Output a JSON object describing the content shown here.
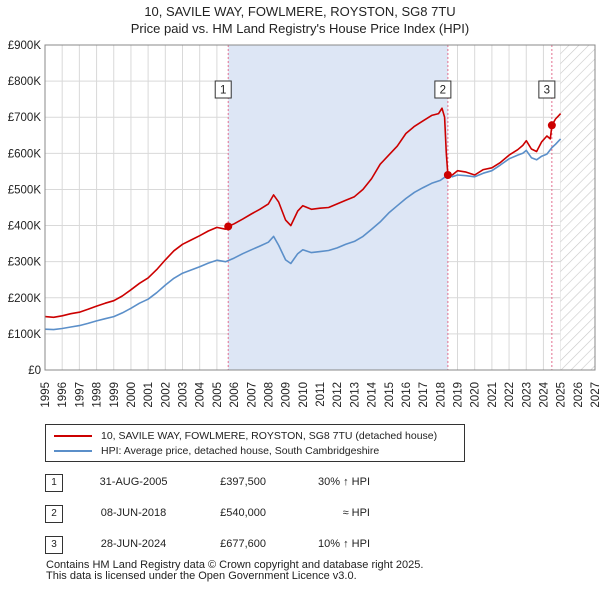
{
  "title": {
    "line1": "10, SAVILE WAY, FOWLMERE, ROYSTON, SG8 7TU",
    "line2": "Price paid vs. HM Land Registry's House Price Index (HPI)"
  },
  "colors": {
    "property": "#cc0000",
    "hpi": "#5b8fc9",
    "shade": "#dde6f5",
    "marker_line": "#e36f8f"
  },
  "chart_data": {
    "type": "line",
    "x_range": [
      1995,
      2027
    ],
    "ylim": [
      0,
      900000
    ],
    "x_ticks": [
      "1995",
      "1996",
      "1997",
      "1998",
      "1999",
      "2000",
      "2001",
      "2002",
      "2003",
      "2004",
      "2005",
      "2006",
      "2007",
      "2008",
      "2009",
      "2010",
      "2011",
      "2012",
      "2013",
      "2014",
      "2015",
      "2016",
      "2017",
      "2018",
      "2019",
      "2020",
      "2021",
      "2022",
      "2023",
      "2024",
      "2025",
      "2026",
      "2027"
    ],
    "y_ticks": [
      {
        "value": 0,
        "label": "£0"
      },
      {
        "value": 100000,
        "label": "£100K"
      },
      {
        "value": 200000,
        "label": "£200K"
      },
      {
        "value": 300000,
        "label": "£300K"
      },
      {
        "value": 400000,
        "label": "£400K"
      },
      {
        "value": 500000,
        "label": "£500K"
      },
      {
        "value": 600000,
        "label": "£600K"
      },
      {
        "value": 700000,
        "label": "£700K"
      },
      {
        "value": 800000,
        "label": "£800K"
      },
      {
        "value": 900000,
        "label": "£900K"
      }
    ],
    "shaded_period": [
      2005.66,
      2018.44
    ],
    "future_hatch_from": 2025.0,
    "series": [
      {
        "name": "10, SAVILE WAY, FOWLMERE, ROYSTON, SG8 7TU (detached house)",
        "key": "property",
        "x": [
          1995.0,
          1995.5,
          1996.0,
          1996.5,
          1997.0,
          1997.5,
          1998.0,
          1998.5,
          1999.0,
          1999.5,
          2000.0,
          2000.5,
          2001.0,
          2001.5,
          2002.0,
          2002.5,
          2003.0,
          2003.5,
          2004.0,
          2004.5,
          2005.0,
          2005.5,
          2005.66,
          2006.0,
          2006.5,
          2007.0,
          2007.5,
          2008.0,
          2008.3,
          2008.6,
          2009.0,
          2009.3,
          2009.7,
          2010.0,
          2010.5,
          2011.0,
          2011.5,
          2012.0,
          2012.5,
          2013.0,
          2013.5,
          2014.0,
          2014.5,
          2015.0,
          2015.5,
          2016.0,
          2016.5,
          2017.0,
          2017.5,
          2017.9,
          2018.1,
          2018.25,
          2018.35,
          2018.44,
          2018.7,
          2019.0,
          2019.5,
          2020.0,
          2020.5,
          2021.0,
          2021.5,
          2022.0,
          2022.5,
          2022.8,
          2023.0,
          2023.3,
          2023.6,
          2023.9,
          2024.2,
          2024.4,
          2024.49,
          2024.7,
          2024.9,
          2025.0
        ],
        "values": [
          148000,
          146000,
          150000,
          156000,
          160000,
          168000,
          177000,
          185000,
          192000,
          205000,
          222000,
          240000,
          255000,
          278000,
          305000,
          330000,
          348000,
          360000,
          372000,
          385000,
          395000,
          390000,
          397500,
          405000,
          418000,
          432000,
          445000,
          460000,
          485000,
          465000,
          415000,
          400000,
          440000,
          455000,
          445000,
          448000,
          450000,
          460000,
          470000,
          480000,
          500000,
          530000,
          570000,
          595000,
          620000,
          655000,
          675000,
          690000,
          705000,
          710000,
          725000,
          700000,
          600000,
          540000,
          540000,
          552000,
          548000,
          540000,
          555000,
          560000,
          575000,
          595000,
          610000,
          622000,
          635000,
          612000,
          605000,
          632000,
          648000,
          640000,
          677600,
          695000,
          705000,
          710000
        ]
      },
      {
        "name": "HPI: Average price, detached house, South Cambridgeshire",
        "key": "hpi",
        "x": [
          1995.0,
          1995.5,
          1996.0,
          1996.5,
          1997.0,
          1997.5,
          1998.0,
          1998.5,
          1999.0,
          1999.5,
          2000.0,
          2000.5,
          2001.0,
          2001.5,
          2002.0,
          2002.5,
          2003.0,
          2003.5,
          2004.0,
          2004.5,
          2005.0,
          2005.5,
          2006.0,
          2006.5,
          2007.0,
          2007.5,
          2008.0,
          2008.3,
          2008.6,
          2009.0,
          2009.3,
          2009.7,
          2010.0,
          2010.5,
          2011.0,
          2011.5,
          2012.0,
          2012.5,
          2013.0,
          2013.5,
          2014.0,
          2014.5,
          2015.0,
          2015.5,
          2016.0,
          2016.5,
          2017.0,
          2017.5,
          2018.0,
          2018.44,
          2018.7,
          2019.0,
          2019.5,
          2020.0,
          2020.5,
          2021.0,
          2021.5,
          2022.0,
          2022.5,
          2022.8,
          2023.0,
          2023.3,
          2023.6,
          2023.9,
          2024.2,
          2024.49,
          2024.7,
          2024.9,
          2025.0
        ],
        "values": [
          113000,
          112000,
          115000,
          119000,
          123000,
          129000,
          136000,
          142000,
          148000,
          158000,
          171000,
          185000,
          196000,
          214000,
          235000,
          254000,
          268000,
          277000,
          286000,
          296000,
          304000,
          300000,
          310000,
          322000,
          333000,
          343000,
          354000,
          370000,
          345000,
          305000,
          295000,
          322000,
          333000,
          325000,
          328000,
          331000,
          338000,
          348000,
          356000,
          370000,
          390000,
          410000,
          435000,
          455000,
          475000,
          492000,
          505000,
          517000,
          525000,
          540000,
          535000,
          540000,
          538000,
          535000,
          545000,
          552000,
          568000,
          585000,
          595000,
          600000,
          608000,
          588000,
          582000,
          592000,
          598000,
          616000,
          625000,
          635000,
          640000
        ]
      }
    ],
    "sales": [
      {
        "marker": "1",
        "x": 2005.66,
        "date": "31-AUG-2005",
        "price": "£397,500",
        "value": 397500,
        "hpi": "30% ↑ HPI"
      },
      {
        "marker": "2",
        "x": 2018.44,
        "date": "08-JUN-2018",
        "price": "£540,000",
        "value": 540000,
        "hpi": "≈ HPI"
      },
      {
        "marker": "3",
        "x": 2024.49,
        "date": "28-JUN-2024",
        "price": "£677,600",
        "value": 677600,
        "hpi": "10% ↑ HPI"
      }
    ]
  },
  "legend": {
    "property_label": "10, SAVILE WAY, FOWLMERE, ROYSTON, SG8 7TU (detached house)",
    "hpi_label": "HPI: Average price, detached house, South Cambridgeshire"
  },
  "footer": {
    "line1": "Contains HM Land Registry data © Crown copyright and database right 2025.",
    "line2": "This data is licensed under the Open Government Licence v3.0."
  }
}
